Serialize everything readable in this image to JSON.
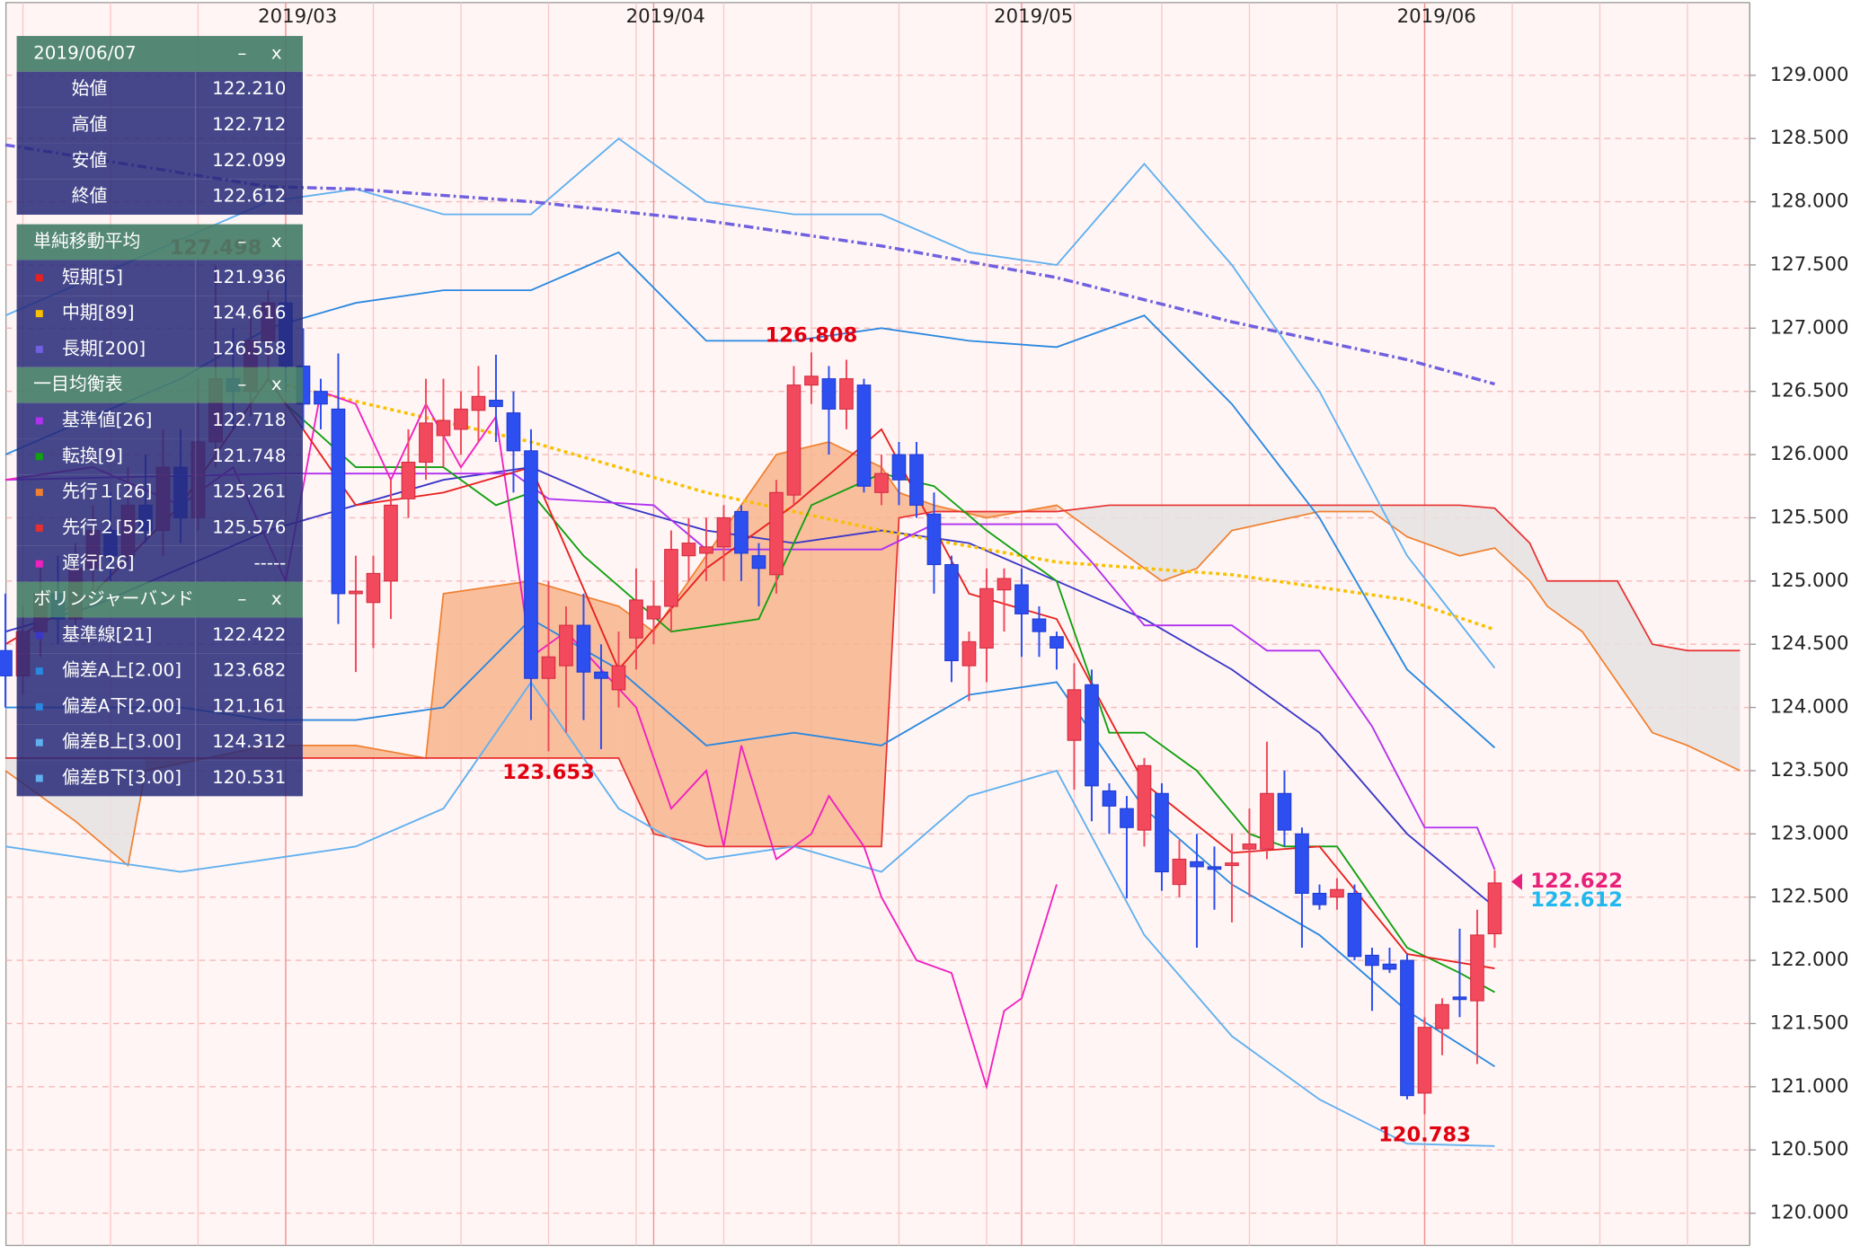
{
  "chart_data": {
    "type": "candlestick",
    "categories": [
      null,
      null,
      null,
      null,
      null,
      null,
      null,
      null,
      null,
      null,
      null,
      null,
      null,
      null,
      null,
      null,
      "2019/03",
      null,
      null,
      null,
      null,
      null,
      null,
      null,
      null,
      null,
      null,
      null,
      null,
      null,
      null,
      null,
      null,
      null,
      null,
      null,
      null,
      "2019/04",
      null,
      null,
      null,
      null,
      null,
      null,
      null,
      null,
      null,
      null,
      null,
      null,
      null,
      null,
      null,
      null,
      null,
      null,
      null,
      null,
      "2019/05",
      null,
      null,
      null,
      null,
      null,
      null,
      null,
      null,
      null,
      null,
      null,
      null,
      null,
      null,
      null,
      null,
      null,
      null,
      null,
      null,
      null,
      null,
      "2019/06",
      null,
      null,
      null,
      null
    ],
    "open": [
      124.45,
      124.25,
      124.6,
      124.9,
      124.7,
      125.1,
      125.4,
      125.2,
      125.6,
      125.4,
      125.9,
      125.5,
      126.1,
      126.6,
      126.5,
      126.9,
      127.2,
      126.7,
      126.5,
      126.36,
      124.9,
      124.83,
      125.0,
      125.65,
      125.94,
      126.15,
      126.2,
      126.35,
      126.43,
      126.33,
      126.03,
      124.23,
      124.33,
      124.65,
      124.28,
      124.14,
      124.55,
      124.7,
      124.8,
      125.2,
      125.22,
      125.27,
      125.55,
      125.2,
      125.05,
      125.68,
      126.55,
      126.6,
      126.36,
      126.55,
      125.7,
      126.0,
      126.0,
      125.53,
      125.13,
      124.33,
      124.47,
      124.93,
      124.97,
      124.7,
      124.56,
      123.74,
      124.18,
      123.34,
      123.2,
      123.03,
      123.32,
      122.6,
      122.78,
      122.74,
      122.75,
      122.88,
      122.88,
      123.32,
      123.0,
      122.53,
      122.5,
      122.53,
      122.04,
      121.97,
      122.0,
      120.95,
      121.46,
      121.71,
      121.68,
      122.21
    ],
    "high": [
      124.9,
      124.8,
      125.1,
      125.2,
      125.3,
      125.6,
      125.7,
      125.9,
      126.0,
      126.2,
      126.2,
      126.6,
      127.498,
      127.0,
      127.1,
      127.3,
      127.4,
      127.0,
      126.6,
      126.8,
      125.2,
      125.2,
      125.8,
      126.2,
      126.6,
      126.6,
      126.5,
      126.7,
      126.79,
      126.5,
      126.2,
      125.0,
      124.8,
      124.9,
      124.5,
      124.6,
      125.1,
      125.0,
      125.4,
      125.5,
      125.5,
      125.6,
      125.6,
      125.3,
      125.8,
      126.7,
      126.808,
      126.7,
      126.75,
      126.6,
      126.0,
      126.1,
      126.1,
      125.7,
      125.2,
      124.6,
      125.1,
      125.1,
      125.1,
      124.8,
      124.6,
      124.35,
      124.3,
      123.4,
      123.3,
      123.6,
      123.4,
      122.95,
      123.0,
      122.9,
      123.0,
      123.2,
      123.73,
      123.5,
      123.05,
      122.6,
      122.65,
      122.6,
      122.1,
      122.1,
      122.05,
      121.55,
      121.7,
      122.25,
      122.4,
      122.712
    ],
    "low": [
      124.0,
      124.1,
      124.4,
      124.5,
      124.6,
      124.9,
      125.0,
      125.1,
      125.3,
      125.2,
      125.3,
      125.4,
      125.9,
      126.2,
      126.3,
      126.6,
      126.5,
      126.2,
      126.2,
      124.66,
      124.28,
      124.47,
      124.7,
      125.5,
      125.8,
      125.9,
      126.0,
      126.1,
      126.1,
      125.7,
      123.9,
      123.653,
      123.8,
      123.9,
      123.67,
      124.0,
      124.3,
      124.5,
      124.6,
      125.0,
      125.0,
      125.0,
      125.0,
      124.8,
      124.9,
      125.6,
      126.4,
      126.0,
      126.2,
      125.7,
      125.6,
      125.6,
      125.5,
      124.9,
      124.2,
      124.05,
      124.2,
      124.6,
      124.4,
      124.4,
      124.3,
      123.35,
      123.1,
      123.0,
      122.49,
      122.9,
      122.55,
      122.5,
      122.1,
      122.4,
      122.3,
      122.5,
      122.8,
      122.9,
      122.1,
      122.4,
      122.4,
      122.0,
      121.6,
      121.9,
      120.9,
      120.783,
      121.25,
      121.55,
      121.18,
      122.099
    ],
    "close": [
      124.25,
      124.6,
      124.9,
      124.7,
      125.1,
      125.4,
      125.2,
      125.6,
      125.4,
      125.9,
      125.5,
      126.1,
      126.6,
      126.5,
      126.9,
      127.2,
      126.7,
      126.4,
      126.4,
      124.9,
      124.92,
      125.06,
      125.6,
      125.94,
      126.25,
      126.27,
      126.36,
      126.46,
      126.38,
      126.03,
      124.23,
      124.4,
      124.65,
      124.28,
      124.23,
      124.33,
      124.85,
      124.8,
      125.25,
      125.3,
      125.27,
      125.5,
      125.22,
      125.1,
      125.7,
      126.55,
      126.62,
      126.36,
      126.6,
      125.75,
      125.85,
      125.8,
      125.6,
      125.13,
      124.37,
      124.52,
      124.94,
      125.02,
      124.74,
      124.6,
      124.47,
      124.14,
      123.38,
      123.22,
      123.05,
      123.54,
      122.7,
      122.8,
      122.74,
      122.72,
      122.77,
      122.92,
      123.32,
      123.03,
      122.53,
      122.44,
      122.56,
      122.03,
      121.96,
      121.93,
      120.93,
      121.47,
      121.65,
      121.69,
      122.2,
      122.612
    ],
    "up_color": "#f24a5c",
    "down_color": "#2d4ff0",
    "ylim": [
      119.745,
      129.575
    ],
    "yticks": [
      {
        "value": 120,
        "label": "120.000"
      },
      {
        "value": 120.5,
        "label": "120.500"
      },
      {
        "value": 121,
        "label": "121.000"
      },
      {
        "value": 121.5,
        "label": "121.500"
      },
      {
        "value": 122,
        "label": "122.000"
      },
      {
        "value": 122.5,
        "label": "122.500"
      },
      {
        "value": 123,
        "label": "123.000"
      },
      {
        "value": 123.5,
        "label": "123.500"
      },
      {
        "value": 124,
        "label": "124.000"
      },
      {
        "value": 124.5,
        "label": "124.500"
      },
      {
        "value": 125,
        "label": "125.000"
      },
      {
        "value": 125.5,
        "label": "125.500"
      },
      {
        "value": 126,
        "label": "126.000"
      },
      {
        "value": 126.5,
        "label": "126.500"
      },
      {
        "value": 127,
        "label": "127.000"
      },
      {
        "value": 127.5,
        "label": "127.500"
      },
      {
        "value": 128,
        "label": "128.000"
      },
      {
        "value": 128.5,
        "label": "128.500"
      },
      {
        "value": 129,
        "label": "129.000"
      }
    ],
    "grid": true,
    "cloud": {
      "x": [
        0,
        4,
        7,
        8,
        15,
        20,
        24,
        25,
        30,
        35,
        36,
        37,
        40,
        44,
        47,
        50,
        51,
        53,
        56,
        60,
        63,
        66,
        68,
        70,
        75,
        78,
        80,
        83,
        85,
        87,
        88,
        90,
        92,
        94,
        96,
        99
      ],
      "span_a": [
        123.5,
        123.1,
        122.75,
        123.5,
        123.7,
        123.7,
        123.6,
        124.9,
        125.0,
        124.8,
        124.7,
        124.6,
        125.2,
        126.0,
        126.1,
        125.9,
        125.7,
        125.6,
        125.5,
        125.6,
        125.3,
        125.0,
        125.1,
        125.4,
        125.55,
        125.55,
        125.35,
        125.2,
        125.261,
        125.0,
        124.8,
        124.6,
        124.2,
        123.8,
        123.7,
        123.5
      ],
      "span_b": [
        123.6,
        123.6,
        123.6,
        123.6,
        123.6,
        123.6,
        123.6,
        123.6,
        123.6,
        123.6,
        123.3,
        123.0,
        122.9,
        122.9,
        122.9,
        122.9,
        125.5,
        125.55,
        125.55,
        125.55,
        125.6,
        125.6,
        125.6,
        125.6,
        125.6,
        125.6,
        125.6,
        125.6,
        125.576,
        125.3,
        125.0,
        125.0,
        125.0,
        124.5,
        124.45,
        124.45
      ],
      "span_a_color": "#f08030",
      "span_b_color": "#e83030",
      "fill_up": "#f8b48c",
      "fill_down": "#e6e2e2"
    },
    "overlays": [
      {
        "color": "#60b0f0",
        "style": "solid",
        "x": [
          0,
          5,
          10,
          15,
          20,
          25,
          30,
          35,
          40,
          45,
          50,
          55,
          60,
          65,
          70,
          75,
          80,
          85
        ],
        "values": [
          127.1,
          127.4,
          127.7,
          128.0,
          128.1,
          127.9,
          127.9,
          128.5,
          128.0,
          127.9,
          127.9,
          127.6,
          127.5,
          128.3,
          127.5,
          126.5,
          125.2,
          124.312
        ]
      },
      {
        "color": "#60b0f0",
        "style": "solid",
        "x": [
          0,
          5,
          10,
          15,
          20,
          25,
          30,
          35,
          40,
          45,
          50,
          55,
          60,
          65,
          70,
          75,
          80,
          85
        ],
        "values": [
          122.9,
          122.8,
          122.7,
          122.8,
          122.9,
          123.2,
          124.2,
          123.2,
          122.8,
          122.9,
          122.7,
          123.3,
          123.5,
          122.2,
          121.4,
          120.9,
          120.55,
          120.531
        ]
      },
      {
        "color": "#2a88e0",
        "style": "solid",
        "x": [
          0,
          5,
          10,
          15,
          20,
          25,
          30,
          35,
          40,
          45,
          50,
          55,
          60,
          65,
          70,
          75,
          80,
          85
        ],
        "values": [
          126.0,
          126.3,
          126.6,
          127.0,
          127.2,
          127.3,
          127.3,
          127.6,
          126.9,
          126.9,
          127.0,
          126.9,
          126.85,
          127.1,
          126.4,
          125.5,
          124.3,
          123.682
        ]
      },
      {
        "color": "#2a88e0",
        "style": "solid",
        "x": [
          0,
          5,
          10,
          15,
          20,
          25,
          30,
          35,
          40,
          45,
          50,
          55,
          60,
          65,
          70,
          75,
          80,
          85
        ],
        "values": [
          124.0,
          124.0,
          124.0,
          123.9,
          123.9,
          124.0,
          124.7,
          124.3,
          123.7,
          123.8,
          123.7,
          124.1,
          124.2,
          123.2,
          122.6,
          122.2,
          121.6,
          121.161
        ]
      },
      {
        "color": "#3a36c8",
        "style": "solid",
        "x": [
          0,
          5,
          10,
          15,
          20,
          25,
          30,
          35,
          40,
          45,
          50,
          55,
          60,
          65,
          70,
          75,
          80,
          85
        ],
        "values": [
          124.6,
          124.8,
          125.1,
          125.4,
          125.6,
          125.8,
          125.9,
          125.6,
          125.4,
          125.3,
          125.4,
          125.3,
          125.0,
          124.7,
          124.3,
          123.8,
          123.0,
          122.422
        ]
      },
      {
        "color": "#7060e0",
        "style": "dashdot",
        "x": [
          0,
          15,
          20,
          30,
          40,
          50,
          60,
          70,
          80,
          85
        ],
        "values": [
          128.45,
          128.12,
          128.1,
          128.0,
          127.85,
          127.65,
          127.4,
          127.05,
          126.75,
          126.558
        ]
      },
      {
        "color": "#f8c000",
        "style": "dotted",
        "x": [
          16,
          30,
          40,
          50,
          60,
          70,
          80,
          85
        ],
        "values": [
          126.55,
          126.1,
          125.7,
          125.4,
          125.15,
          125.05,
          124.85,
          124.616
        ]
      },
      {
        "color": "#b030f0",
        "style": "solid",
        "x": [
          0,
          16,
          29,
          31,
          37,
          40,
          50,
          53,
          60,
          62,
          65,
          70,
          72,
          75,
          78,
          81,
          84,
          85
        ],
        "values": [
          125.8,
          125.85,
          125.85,
          125.65,
          125.6,
          125.25,
          125.25,
          125.45,
          125.45,
          125.15,
          124.65,
          124.65,
          124.45,
          124.45,
          123.85,
          123.05,
          123.05,
          122.718
        ]
      },
      {
        "color": "#10a010",
        "style": "solid",
        "x": [
          16,
          20,
          25,
          28,
          30,
          33,
          38,
          43,
          46,
          50,
          53,
          56,
          60,
          63,
          65,
          68,
          71,
          73,
          76,
          80,
          83,
          85
        ],
        "values": [
          126.4,
          125.9,
          125.9,
          125.6,
          125.7,
          125.2,
          124.6,
          124.7,
          125.6,
          125.85,
          125.75,
          125.4,
          125.0,
          123.8,
          123.8,
          123.5,
          123.0,
          122.9,
          122.9,
          122.1,
          121.9,
          121.748
        ]
      },
      {
        "color": "#f020c0",
        "style": "solid",
        "x": [
          0,
          5,
          10,
          13,
          16,
          18,
          20,
          22,
          24,
          26,
          28,
          30,
          32,
          34,
          36,
          38,
          40,
          41,
          42,
          44,
          46,
          47,
          49,
          50,
          52,
          54,
          56,
          57,
          58,
          60
        ],
        "values": [
          125.8,
          125.9,
          125.6,
          125.9,
          125.0,
          126.5,
          126.4,
          125.8,
          126.4,
          125.9,
          126.3,
          124.4,
          124.6,
          124.3,
          124.0,
          123.2,
          123.5,
          122.9,
          123.7,
          122.8,
          123.0,
          123.3,
          122.9,
          122.5,
          122.0,
          121.9,
          121.0,
          121.6,
          121.7,
          122.6
        ]
      },
      {
        "color": "#e82020",
        "style": "solid",
        "x": [
          0,
          5,
          10,
          15,
          20,
          25,
          30,
          35,
          40,
          45,
          50,
          55,
          60,
          65,
          70,
          75,
          80,
          85
        ],
        "values": [
          124.5,
          124.9,
          125.6,
          126.6,
          125.6,
          125.7,
          125.9,
          124.3,
          125.1,
          125.6,
          126.2,
          124.9,
          124.7,
          123.4,
          122.85,
          122.9,
          122.05,
          121.936
        ]
      }
    ],
    "annotations": [
      {
        "x": 12,
        "value": 127.498
      },
      {
        "x": 46,
        "value": 126.808
      },
      {
        "x": 31,
        "value": 123.653
      },
      {
        "x": 81,
        "value": 120.783
      }
    ],
    "price_markers": [
      {
        "value": 122.622,
        "color": "#e8207a"
      },
      {
        "value": 122.612,
        "color": "#20b8f0"
      }
    ]
  },
  "info_panel": {
    "sections": [
      {
        "title": "2019/06/07",
        "controls": [
          "–",
          "x"
        ],
        "rows": [
          {
            "label": "始値",
            "value": "122.210"
          },
          {
            "label": "高値",
            "value": "122.712"
          },
          {
            "label": "安値",
            "value": "122.099"
          },
          {
            "label": "終値",
            "value": "122.612"
          }
        ]
      },
      {
        "title": "単純移動平均",
        "controls": [
          "–",
          "x"
        ],
        "rows": [
          {
            "label": "短期[5]",
            "value": "121.936",
            "color": "#e82020"
          },
          {
            "label": "中期[89]",
            "value": "124.616",
            "color": "#f8c000"
          },
          {
            "label": "長期[200]",
            "value": "126.558",
            "color": "#7060e0"
          }
        ]
      },
      {
        "title": "一目均衡表",
        "controls": [
          "–",
          "x"
        ],
        "rows": [
          {
            "label": "基準値[26]",
            "value": "122.718",
            "color": "#b030f0"
          },
          {
            "label": "転換[9]",
            "value": "121.748",
            "color": "#10a010"
          },
          {
            "label": "先行１[26]",
            "value": "125.261",
            "color": "#f08030"
          },
          {
            "label": "先行２[52]",
            "value": "125.576",
            "color": "#e83030"
          },
          {
            "label": "遅行[26]",
            "value": "-----",
            "color": "#f020c0"
          }
        ]
      },
      {
        "title": "ボリンジャーバンド",
        "controls": [
          "–",
          "x"
        ],
        "rows": [
          {
            "label": "基準線[21]",
            "value": "122.422",
            "color": "#3a36c8"
          },
          {
            "label": "偏差A上[2.00]",
            "value": "123.682",
            "color": "#2a88e0"
          },
          {
            "label": "偏差A下[2.00]",
            "value": "121.161",
            "color": "#2a88e0"
          },
          {
            "label": "偏差B上[3.00]",
            "value": "124.312",
            "color": "#60b0f0"
          },
          {
            "label": "偏差B下[3.00]",
            "value": "120.531",
            "color": "#60b0f0"
          }
        ]
      }
    ]
  }
}
